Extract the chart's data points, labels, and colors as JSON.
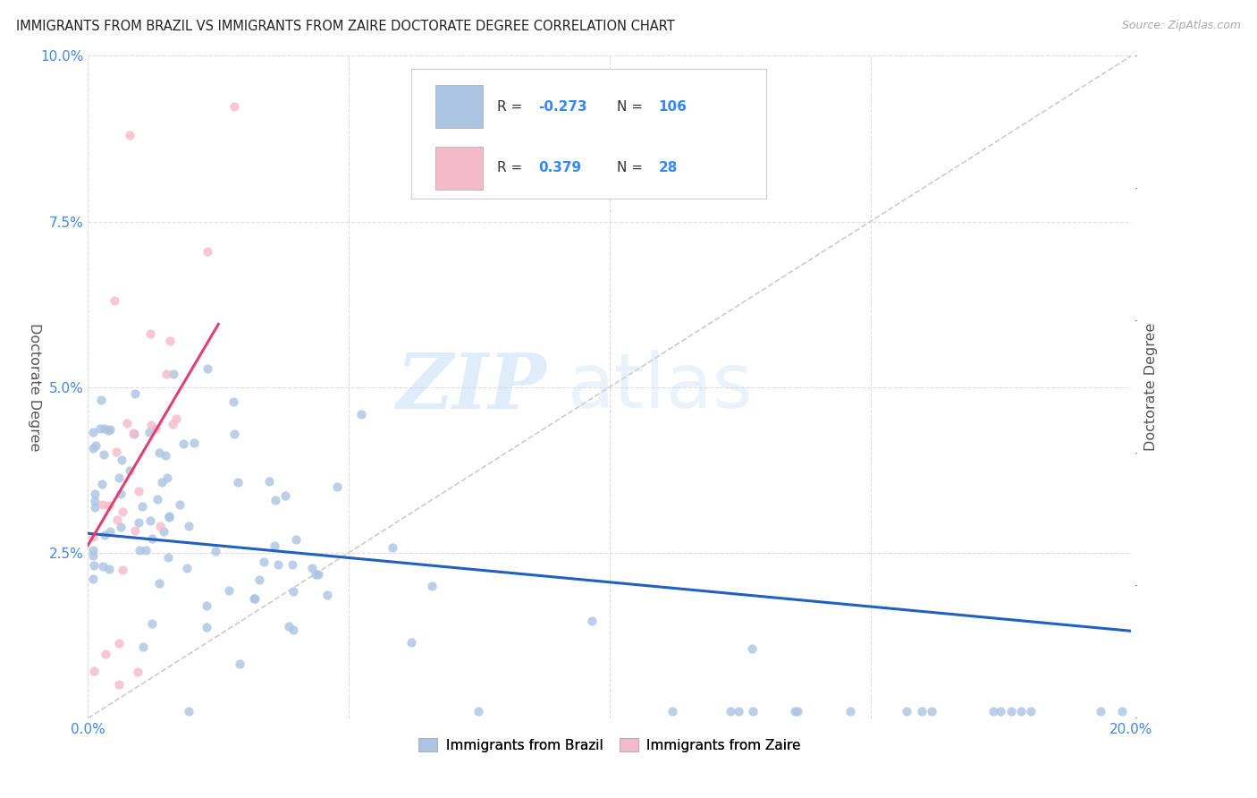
{
  "title": "IMMIGRANTS FROM BRAZIL VS IMMIGRANTS FROM ZAIRE DOCTORATE DEGREE CORRELATION CHART",
  "source": "Source: ZipAtlas.com",
  "ylabel": "Doctorate Degree",
  "xlim": [
    0.0,
    0.2
  ],
  "ylim": [
    0.0,
    0.1
  ],
  "xticks": [
    0.0,
    0.05,
    0.1,
    0.15,
    0.2
  ],
  "yticks": [
    0.0,
    0.025,
    0.05,
    0.075,
    0.1
  ],
  "xticklabels": [
    "0.0%",
    "",
    "",
    "",
    "20.0%"
  ],
  "yticklabels": [
    "",
    "2.5%",
    "5.0%",
    "7.5%",
    "10.0%"
  ],
  "brazil_color": "#aac4e2",
  "zaire_color": "#f5bac9",
  "brazil_line_color": "#2060c0",
  "zaire_line_color": "#e04070",
  "diagonal_color": "#cccccc",
  "brazil_R": -0.273,
  "brazil_N": 106,
  "zaire_R": 0.379,
  "zaire_N": 28,
  "legend_brazil": "Immigrants from Brazil",
  "legend_zaire": "Immigrants from Zaire",
  "watermark_zip": "ZIP",
  "watermark_atlas": "atlas"
}
